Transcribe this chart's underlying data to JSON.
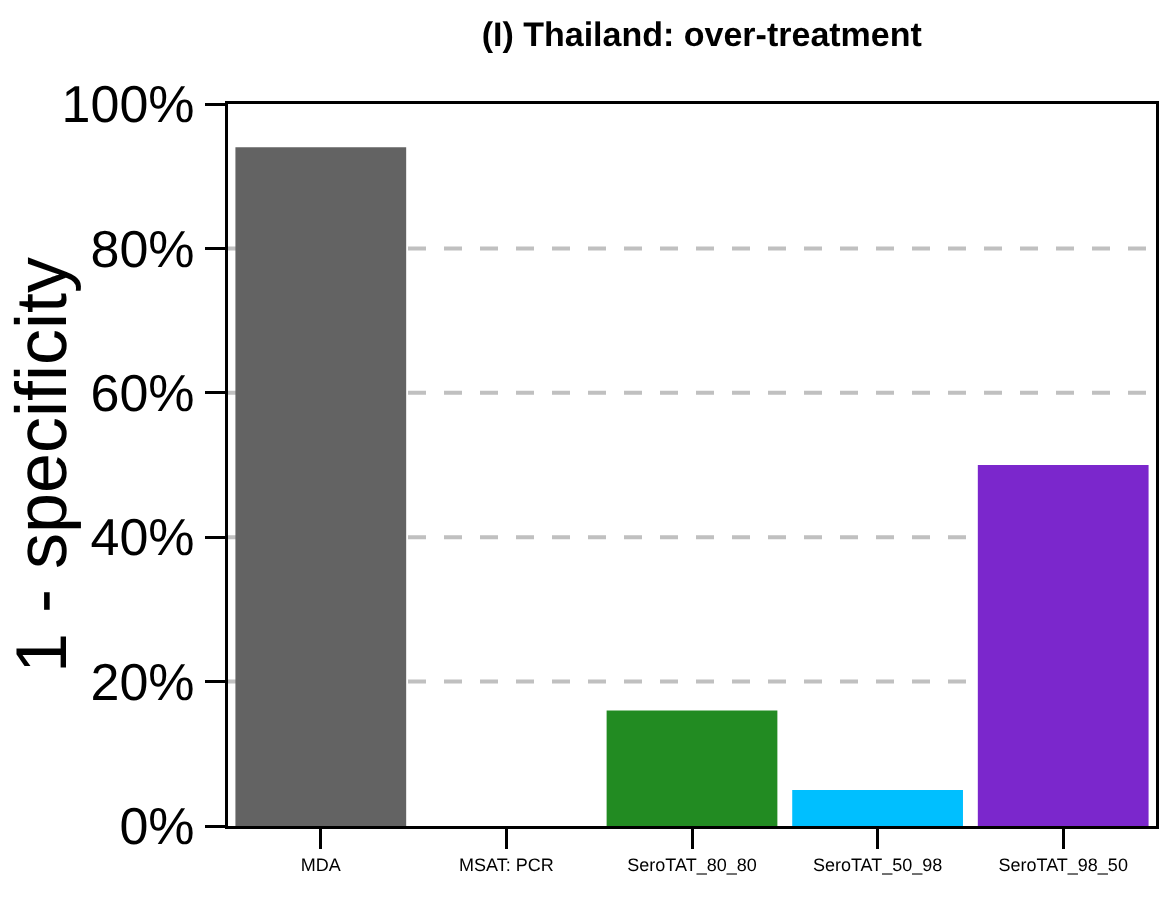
{
  "chart_data": {
    "type": "bar",
    "title": "(I) Thailand: over-treatment",
    "ylabel": "1 - specificity",
    "categories": [
      "MDA",
      "MSAT: PCR",
      "SeroTAT_80_80",
      "SeroTAT_50_98",
      "SeroTAT_98_50"
    ],
    "values": [
      94,
      0,
      16,
      5,
      50
    ],
    "colors": [
      "#636363",
      "#636363",
      "#228b22",
      "#00bfff",
      "#7b27cc"
    ],
    "ylim": [
      0,
      100
    ],
    "yticks": [
      {
        "value": 0,
        "label": "0%"
      },
      {
        "value": 20,
        "label": "20%"
      },
      {
        "value": 40,
        "label": "40%"
      },
      {
        "value": 60,
        "label": "60%"
      },
      {
        "value": 80,
        "label": "80%"
      },
      {
        "value": 100,
        "label": "100%"
      }
    ],
    "grid": "y"
  }
}
